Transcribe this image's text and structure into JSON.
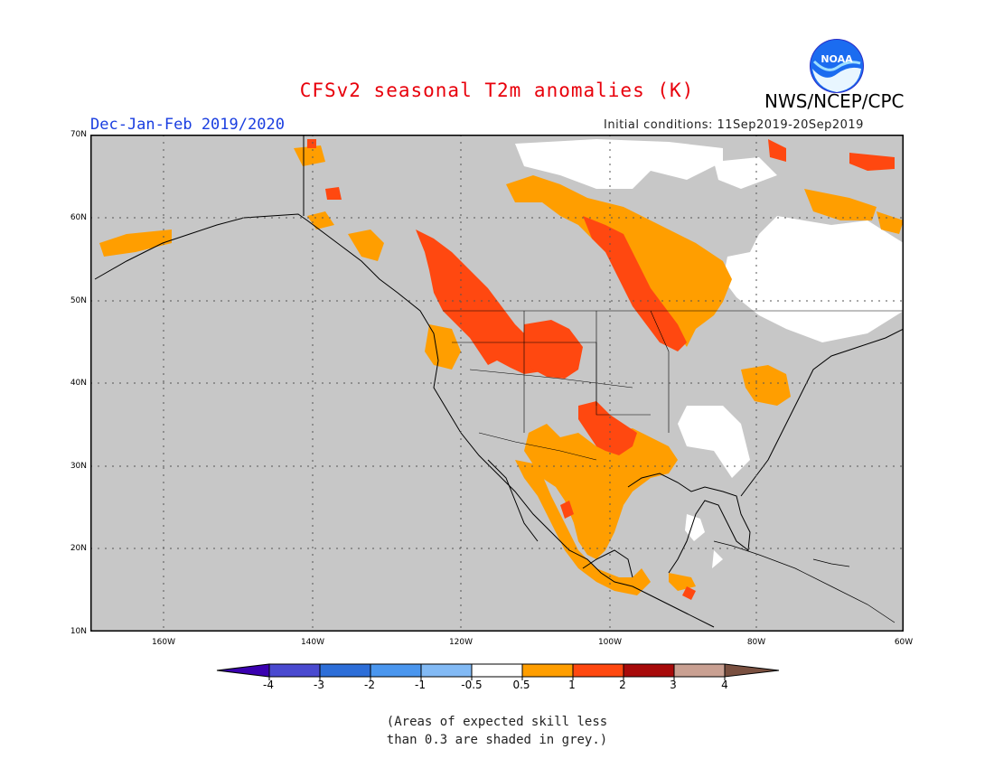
{
  "title": "CFSv2 seasonal T2m anomalies (K)",
  "agency": "NWS/NCEP/CPC",
  "logo_text": "NOAA",
  "season": "Dec-Jan-Feb 2019/2020",
  "initial_conditions": "Initial conditions: 11Sep2019-20Sep2019",
  "lat_labels": [
    "70N",
    "60N",
    "50N",
    "40N",
    "30N",
    "20N",
    "10N"
  ],
  "lon_labels": [
    "160W",
    "140W",
    "120W",
    "100W",
    "80W",
    "60W"
  ],
  "colorbar": {
    "labels": [
      "-4",
      "-3",
      "-2",
      "-1",
      "-0.5",
      "0.5",
      "1",
      "2",
      "3",
      "4"
    ],
    "colors": [
      "#3a00b0",
      "#4a4ad0",
      "#2d6ed8",
      "#4a96ee",
      "#82baf5",
      "#ffffff",
      "#ff9e00",
      "#ff4810",
      "#a70a0a",
      "#c9a092",
      "#7a5040"
    ]
  },
  "note_lines": [
    "(Areas of expected skill less",
    "than 0.3 are shaded in grey.)"
  ],
  "map_colors": {
    "ocean": "#c7c7c7",
    "no_skill": "#c7c7c7",
    "neutral": "#ffffff",
    "warm_05_1": "#ff9e00",
    "warm_1_2": "#ff4810"
  }
}
